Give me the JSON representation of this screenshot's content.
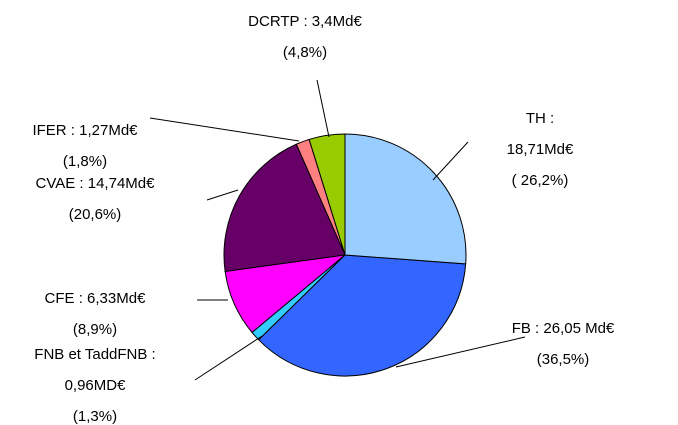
{
  "chart_data": {
    "type": "pie",
    "categories": [
      "TH : 18,71Md€",
      "FB : 26,05 Md€",
      "FNB et TaddFNB : 0,96MD€",
      "CFE : 6,33Md€",
      "CVAE : 14,74Md€",
      "IFER : 1,27Md€",
      "DCRTP : 3,4Md€"
    ],
    "values": [
      26.2,
      36.5,
      1.3,
      8.9,
      20.6,
      1.8,
      4.8
    ],
    "value_labels": [
      "( 26,2%)",
      "(36,5%)",
      "(1,3%)",
      "(8,9%)",
      "(20,6%)",
      "(1,8%)",
      "(4,8%)"
    ],
    "colors": [
      "#99ccff",
      "#3366ff",
      "#33ccff",
      "#ff00ff",
      "#660066",
      "#ff8080",
      "#99cc00"
    ]
  }
}
